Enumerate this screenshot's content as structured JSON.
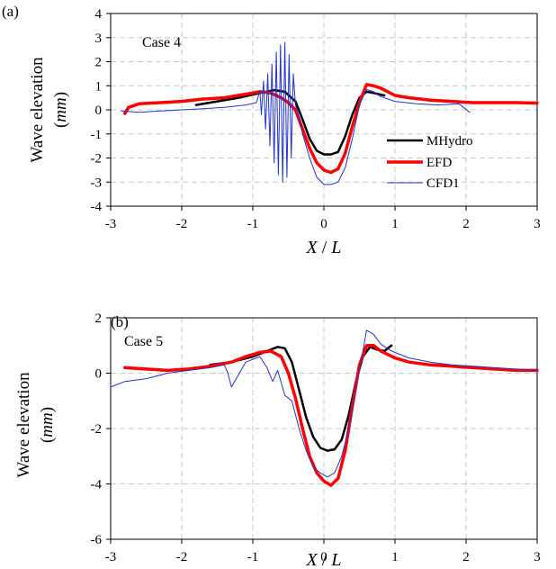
{
  "chart_data": [
    {
      "type": "line",
      "panel_label": "(a)",
      "annotation": "Case 4",
      "title": "",
      "xlabel_main": "X",
      "xlabel_sep": " / ",
      "xlabel_sub": "L",
      "ylabel_main": "Wave elevation",
      "ylabel_unit": "(mm)",
      "xlim": [
        -3,
        3
      ],
      "ylim": [
        -4,
        4
      ],
      "xticks": [
        -3,
        -2,
        -1,
        0,
        1,
        2,
        3
      ],
      "yticks": [
        -4,
        -3,
        -2,
        -1,
        0,
        1,
        2,
        3,
        4
      ],
      "grid": true,
      "legend_position": "right-middle",
      "series": [
        {
          "name": "MHydro",
          "color": "#000000",
          "x": [
            -1.8,
            -1.5,
            -1.2,
            -0.9,
            -0.7,
            -0.55,
            -0.4,
            -0.3,
            -0.2,
            -0.1,
            0.0,
            0.1,
            0.2,
            0.3,
            0.4,
            0.5,
            0.6,
            0.7,
            0.85
          ],
          "y": [
            0.2,
            0.35,
            0.5,
            0.7,
            0.82,
            0.75,
            0.35,
            -0.4,
            -1.2,
            -1.7,
            -1.85,
            -1.85,
            -1.75,
            -1.1,
            -0.2,
            0.5,
            0.75,
            0.7,
            0.6
          ]
        },
        {
          "name": "EFD",
          "color": "#ff0000",
          "x": [
            -2.8,
            -2.75,
            -2.6,
            -2.3,
            -2.0,
            -1.7,
            -1.4,
            -1.1,
            -0.9,
            -0.75,
            -0.6,
            -0.5,
            -0.4,
            -0.3,
            -0.2,
            -0.1,
            0.0,
            0.1,
            0.2,
            0.3,
            0.4,
            0.5,
            0.6,
            0.7,
            0.8,
            0.9,
            1.0,
            1.2,
            1.5,
            1.8,
            2.1,
            2.4,
            2.7,
            3.0
          ],
          "y": [
            -0.15,
            0.1,
            0.25,
            0.3,
            0.35,
            0.45,
            0.5,
            0.65,
            0.75,
            0.7,
            0.5,
            0.3,
            0.0,
            -0.8,
            -1.6,
            -2.2,
            -2.5,
            -2.6,
            -2.45,
            -1.8,
            -0.7,
            0.3,
            1.05,
            1.0,
            0.9,
            0.75,
            0.6,
            0.5,
            0.4,
            0.35,
            0.3,
            0.3,
            0.3,
            0.28
          ]
        },
        {
          "name": "CFD1",
          "color": "#2233cc",
          "x": [
            -2.85,
            -2.6,
            -2.3,
            -2.0,
            -1.7,
            -1.4,
            -1.1,
            -0.95,
            -0.9,
            -0.88,
            -0.85,
            -0.82,
            -0.79,
            -0.76,
            -0.73,
            -0.7,
            -0.67,
            -0.64,
            -0.61,
            -0.58,
            -0.55,
            -0.52,
            -0.49,
            -0.46,
            -0.43,
            -0.4,
            -0.35,
            -0.3,
            -0.2,
            -0.1,
            0.0,
            0.1,
            0.2,
            0.3,
            0.4,
            0.5,
            0.6,
            0.7,
            0.8,
            1.0,
            1.3,
            1.6,
            1.9,
            2.05
          ],
          "y": [
            -0.05,
            -0.1,
            -0.05,
            0.0,
            0.05,
            0.1,
            0.2,
            0.3,
            0.8,
            -0.2,
            1.2,
            -0.8,
            1.5,
            -1.5,
            1.9,
            -2.2,
            2.4,
            -2.7,
            2.7,
            -3.0,
            2.8,
            -2.8,
            2.3,
            -2.0,
            1.5,
            0.2,
            -0.3,
            -1.0,
            -2.0,
            -2.8,
            -3.1,
            -3.1,
            -3.0,
            -2.4,
            -1.2,
            0.2,
            0.85,
            0.75,
            0.55,
            0.35,
            0.25,
            0.2,
            0.25,
            -0.1
          ]
        }
      ]
    },
    {
      "type": "line",
      "panel_label": "(b)",
      "annotation": "Case 5",
      "title": "",
      "xlabel_main": "X",
      "xlabel_sep": " / ",
      "xlabel_sub": "L",
      "ylabel_main": "Wave elevation",
      "ylabel_unit": "(mm)",
      "xlim": [
        -3,
        3
      ],
      "ylim": [
        -6,
        2
      ],
      "xticks": [
        -3,
        -2,
        -1,
        0,
        1,
        2,
        3
      ],
      "yticks": [
        -6,
        -4,
        -2,
        0,
        2
      ],
      "grid": true,
      "series": [
        {
          "name": "MHydro",
          "color": "#000000",
          "x": [
            -1.6,
            -1.3,
            -1.0,
            -0.8,
            -0.65,
            -0.55,
            -0.45,
            -0.35,
            -0.25,
            -0.15,
            -0.05,
            0.05,
            0.15,
            0.25,
            0.35,
            0.45,
            0.55,
            0.65,
            0.75,
            0.85,
            0.95
          ],
          "y": [
            0.3,
            0.4,
            0.6,
            0.8,
            0.95,
            0.9,
            0.4,
            -0.6,
            -1.6,
            -2.3,
            -2.7,
            -2.8,
            -2.75,
            -2.4,
            -1.5,
            -0.3,
            0.6,
            0.95,
            0.85,
            0.8,
            1.0
          ]
        },
        {
          "name": "EFD",
          "color": "#ff0000",
          "x": [
            -2.8,
            -2.5,
            -2.2,
            -1.9,
            -1.6,
            -1.3,
            -1.1,
            -0.9,
            -0.75,
            -0.6,
            -0.5,
            -0.4,
            -0.3,
            -0.2,
            -0.1,
            0.0,
            0.1,
            0.2,
            0.3,
            0.4,
            0.5,
            0.6,
            0.7,
            0.8,
            1.0,
            1.2,
            1.5,
            1.8,
            2.1,
            2.4,
            2.7,
            3.0
          ],
          "y": [
            0.2,
            0.15,
            0.1,
            0.15,
            0.25,
            0.4,
            0.6,
            0.75,
            0.8,
            0.6,
            0.0,
            -0.9,
            -2.0,
            -3.0,
            -3.6,
            -3.9,
            -4.05,
            -3.8,
            -2.8,
            -1.2,
            0.3,
            1.0,
            1.0,
            0.8,
            0.55,
            0.4,
            0.3,
            0.25,
            0.2,
            0.15,
            0.1,
            0.1
          ]
        },
        {
          "name": "CFD1",
          "color": "#2233cc",
          "x": [
            -3.0,
            -2.8,
            -2.5,
            -2.2,
            -1.9,
            -1.6,
            -1.4,
            -1.35,
            -1.3,
            -1.1,
            -0.9,
            -0.8,
            -0.72,
            -0.65,
            -0.55,
            -0.45,
            -0.35,
            -0.25,
            -0.15,
            -0.05,
            0.05,
            0.15,
            0.25,
            0.35,
            0.45,
            0.55,
            0.6,
            0.7,
            0.8,
            0.95,
            1.2,
            1.5,
            1.8,
            2.1,
            2.4,
            2.7,
            3.0
          ],
          "y": [
            -0.5,
            -0.3,
            -0.2,
            0.0,
            0.1,
            0.2,
            0.3,
            0.0,
            -0.5,
            0.4,
            0.6,
            0.2,
            -0.3,
            0.1,
            -0.8,
            -1.0,
            -2.0,
            -2.8,
            -3.4,
            -3.6,
            -3.75,
            -3.6,
            -3.0,
            -2.0,
            -0.5,
            0.8,
            1.55,
            1.4,
            1.05,
            0.8,
            0.55,
            0.4,
            0.3,
            0.25,
            0.2,
            0.15,
            0.1
          ]
        }
      ]
    }
  ]
}
